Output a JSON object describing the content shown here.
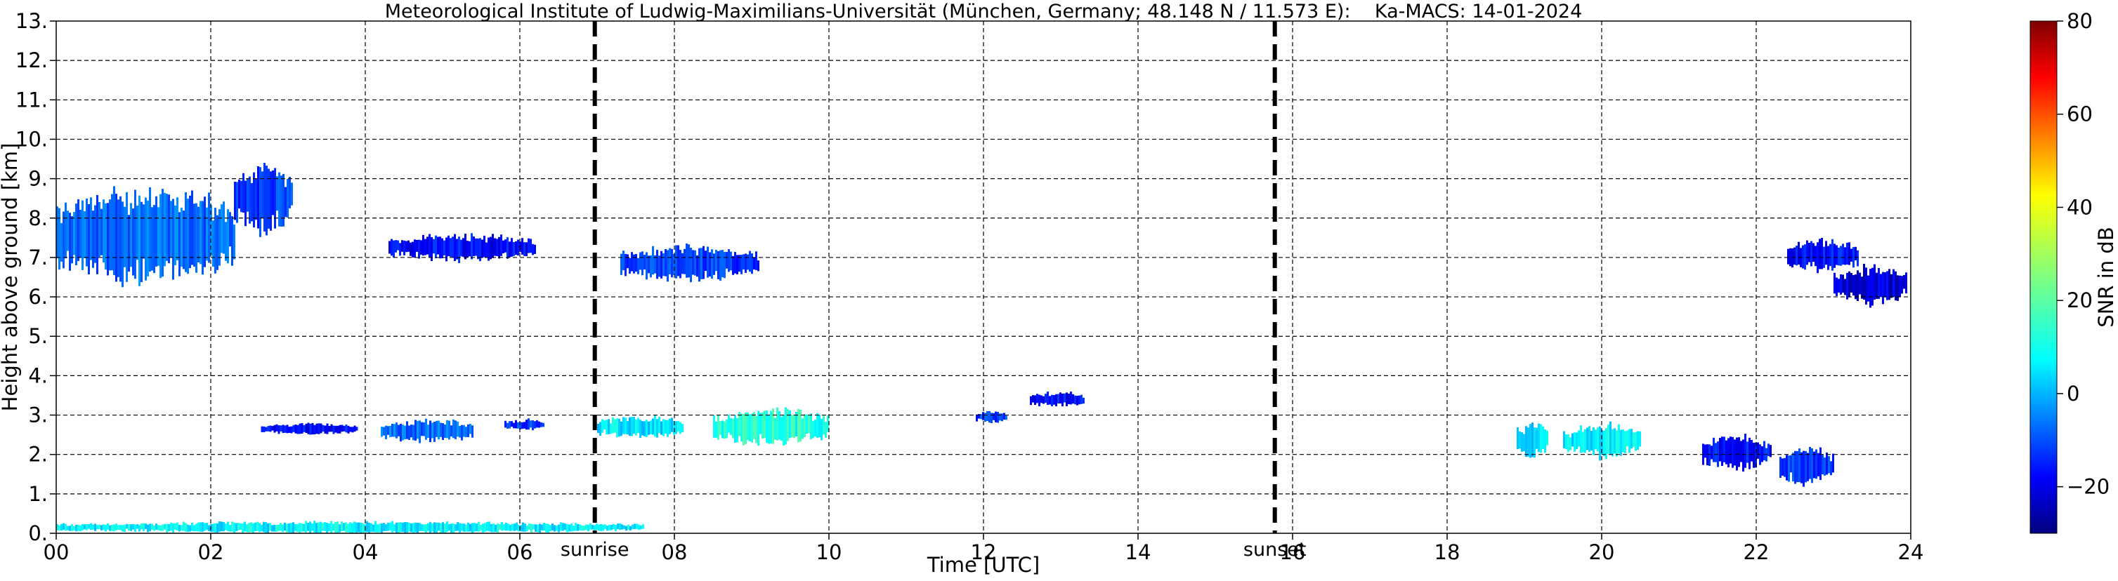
{
  "chart_data": {
    "type": "heatmap",
    "title": "Meteorological Institute of Ludwig-Maximilians-Universität (München, Germany; 48.148 N / 11.573 E):    Ka-MACS: 14-01-2024",
    "xlabel": "Time [UTC]",
    "ylabel": "Height above ground [km]",
    "xlim": [
      0,
      24
    ],
    "ylim": [
      0,
      13
    ],
    "x_ticks": [
      "00",
      "02",
      "04",
      "06",
      "08",
      "10",
      "12",
      "14",
      "16",
      "18",
      "20",
      "22",
      "24"
    ],
    "y_ticks": [
      "0.",
      "1.",
      "2.",
      "3.",
      "4.",
      "5.",
      "6.",
      "7.",
      "8.",
      "9.",
      "10.",
      "11.",
      "12.",
      "13."
    ],
    "grid": true,
    "markers": [
      {
        "x": 6.97,
        "label": "sunrise"
      },
      {
        "x": 15.77,
        "label": "sunset"
      }
    ],
    "colorbar": {
      "label": "SNR in dB",
      "range": [
        -30,
        80
      ],
      "ticks": [
        "−20",
        "0",
        "20",
        "40",
        "60",
        "80"
      ],
      "tick_values": [
        -20,
        0,
        20,
        40,
        60,
        80
      ],
      "colormap": "jet"
    },
    "echo_regions": [
      {
        "t0": 0.0,
        "t1": 2.3,
        "h0": 6.3,
        "h1": 8.8,
        "snr": -5
      },
      {
        "t0": 2.3,
        "t1": 3.05,
        "h0": 7.6,
        "h1": 9.4,
        "snr": -10
      },
      {
        "t0": 4.3,
        "t1": 6.2,
        "h0": 6.9,
        "h1": 7.6,
        "snr": -15
      },
      {
        "t0": 7.3,
        "t1": 9.1,
        "h0": 6.4,
        "h1": 7.3,
        "snr": -10
      },
      {
        "t0": 22.4,
        "t1": 23.3,
        "h0": 6.6,
        "h1": 7.5,
        "snr": -15
      },
      {
        "t0": 23.0,
        "t1": 23.95,
        "h0": 5.8,
        "h1": 6.8,
        "snr": -20
      },
      {
        "t0": 2.65,
        "t1": 3.9,
        "h0": 2.5,
        "h1": 2.8,
        "snr": -15
      },
      {
        "t0": 4.2,
        "t1": 5.4,
        "h0": 2.3,
        "h1": 2.9,
        "snr": -5
      },
      {
        "t0": 5.8,
        "t1": 6.3,
        "h0": 2.6,
        "h1": 2.9,
        "snr": -10
      },
      {
        "t0": 7.0,
        "t1": 8.1,
        "h0": 2.4,
        "h1": 3.0,
        "snr": 8
      },
      {
        "t0": 8.5,
        "t1": 10.0,
        "h0": 2.2,
        "h1": 3.2,
        "snr": 15
      },
      {
        "t0": 11.9,
        "t1": 12.3,
        "h0": 2.8,
        "h1": 3.1,
        "snr": -10
      },
      {
        "t0": 12.6,
        "t1": 13.3,
        "h0": 3.2,
        "h1": 3.6,
        "snr": -15
      },
      {
        "t0": 18.9,
        "t1": 19.3,
        "h0": 1.9,
        "h1": 2.8,
        "snr": 8
      },
      {
        "t0": 19.5,
        "t1": 20.5,
        "h0": 1.9,
        "h1": 2.8,
        "snr": 10
      },
      {
        "t0": 21.3,
        "t1": 22.2,
        "h0": 1.6,
        "h1": 2.5,
        "snr": -15
      },
      {
        "t0": 22.3,
        "t1": 23.0,
        "h0": 1.2,
        "h1": 2.2,
        "snr": -10
      },
      {
        "t0": 0.0,
        "t1": 7.6,
        "h0": 0.0,
        "h1": 0.3,
        "snr": 10
      }
    ]
  }
}
